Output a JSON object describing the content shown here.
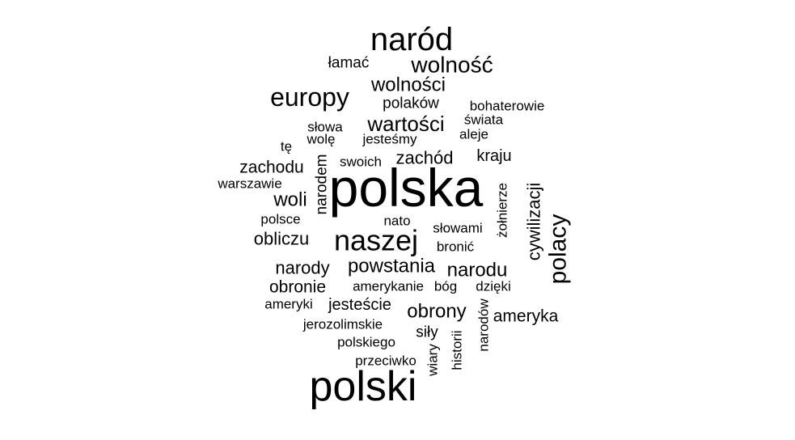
{
  "chart_data": {
    "type": "wordcloud",
    "words": [
      {
        "text": "polska"
      },
      {
        "text": "polski"
      },
      {
        "text": "naród"
      },
      {
        "text": "naszej"
      },
      {
        "text": "europy"
      },
      {
        "text": "wolność"
      },
      {
        "text": "polacy"
      },
      {
        "text": "wartości"
      },
      {
        "text": "wolności"
      },
      {
        "text": "powstania"
      },
      {
        "text": "narodu"
      },
      {
        "text": "obrony"
      },
      {
        "text": "woli"
      },
      {
        "text": "obliczu"
      },
      {
        "text": "narody"
      },
      {
        "text": "cywilizacji"
      },
      {
        "text": "zachód"
      },
      {
        "text": "zachodu"
      },
      {
        "text": "obronie"
      },
      {
        "text": "ameryka"
      },
      {
        "text": "jesteście"
      },
      {
        "text": "kraju"
      },
      {
        "text": "polaków"
      },
      {
        "text": "narodem"
      },
      {
        "text": "łamać"
      },
      {
        "text": "siły"
      },
      {
        "text": "słowami"
      },
      {
        "text": "bohaterowie"
      },
      {
        "text": "świata"
      },
      {
        "text": "aleje"
      },
      {
        "text": "słowa"
      },
      {
        "text": "wolę"
      },
      {
        "text": "jesteśmy"
      },
      {
        "text": "tę"
      },
      {
        "text": "swoich"
      },
      {
        "text": "warszawie"
      },
      {
        "text": "polsce"
      },
      {
        "text": "nato"
      },
      {
        "text": "bronić"
      },
      {
        "text": "żołnierze"
      },
      {
        "text": "amerykanie"
      },
      {
        "text": "bóg"
      },
      {
        "text": "dzięki"
      },
      {
        "text": "ameryki"
      },
      {
        "text": "jerozolimskie"
      },
      {
        "text": "polskiego"
      },
      {
        "text": "przeciwko"
      },
      {
        "text": "wiary"
      },
      {
        "text": "historii"
      },
      {
        "text": "narodów"
      }
    ]
  }
}
